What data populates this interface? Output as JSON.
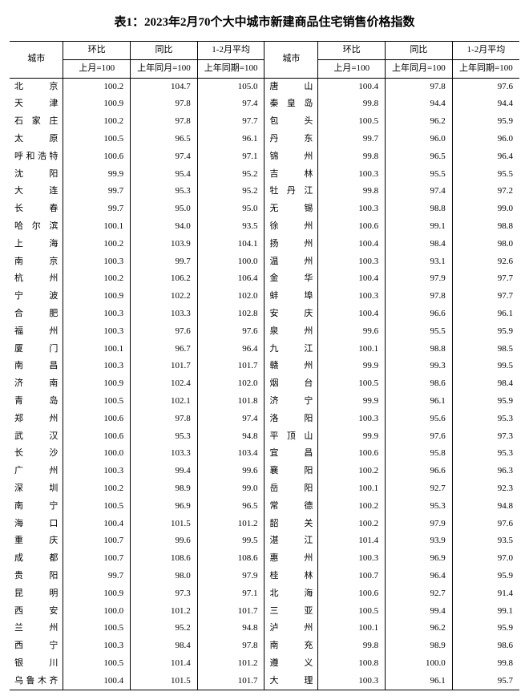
{
  "title": "表1：2023年2月70个大中城市新建商品住宅销售价格指数",
  "header": {
    "city_label": "城市",
    "ratio_month": "环比",
    "ratio_year": "同比",
    "ratio_avg": "1-2月平均",
    "sub_month": "上月=100",
    "sub_year": "上年同月=100",
    "sub_avg": "上年同期=100"
  },
  "colors": {
    "bg": "#ffffff",
    "text": "#000000",
    "border": "#000000"
  },
  "font": {
    "family": "SimSun",
    "size_body": 11,
    "size_title": 15
  },
  "left": [
    {
      "city": "北京",
      "m": "100.2",
      "y": "104.7",
      "a": "105.0"
    },
    {
      "city": "天津",
      "m": "100.9",
      "y": "97.8",
      "a": "97.4"
    },
    {
      "city": "石家庄",
      "m": "100.2",
      "y": "97.8",
      "a": "97.7"
    },
    {
      "city": "太原",
      "m": "100.5",
      "y": "96.5",
      "a": "96.1"
    },
    {
      "city": "呼和浩特",
      "m": "100.6",
      "y": "97.4",
      "a": "97.1"
    },
    {
      "city": "沈阳",
      "m": "99.9",
      "y": "95.4",
      "a": "95.2"
    },
    {
      "city": "大连",
      "m": "99.7",
      "y": "95.3",
      "a": "95.2"
    },
    {
      "city": "长春",
      "m": "99.7",
      "y": "95.0",
      "a": "95.0"
    },
    {
      "city": "哈尔滨",
      "m": "100.1",
      "y": "94.0",
      "a": "93.5"
    },
    {
      "city": "上海",
      "m": "100.2",
      "y": "103.9",
      "a": "104.1"
    },
    {
      "city": "南京",
      "m": "100.3",
      "y": "99.7",
      "a": "100.0"
    },
    {
      "city": "杭州",
      "m": "100.2",
      "y": "106.2",
      "a": "106.4"
    },
    {
      "city": "宁波",
      "m": "100.9",
      "y": "102.2",
      "a": "102.0"
    },
    {
      "city": "合肥",
      "m": "100.3",
      "y": "103.3",
      "a": "102.8"
    },
    {
      "city": "福州",
      "m": "100.3",
      "y": "97.6",
      "a": "97.6"
    },
    {
      "city": "厦门",
      "m": "100.1",
      "y": "96.7",
      "a": "96.4"
    },
    {
      "city": "南昌",
      "m": "100.3",
      "y": "101.7",
      "a": "101.7"
    },
    {
      "city": "济南",
      "m": "100.9",
      "y": "102.4",
      "a": "102.0"
    },
    {
      "city": "青岛",
      "m": "100.5",
      "y": "102.1",
      "a": "101.8"
    },
    {
      "city": "郑州",
      "m": "100.6",
      "y": "97.8",
      "a": "97.4"
    },
    {
      "city": "武汉",
      "m": "100.6",
      "y": "95.3",
      "a": "94.8"
    },
    {
      "city": "长沙",
      "m": "100.0",
      "y": "103.3",
      "a": "103.4"
    },
    {
      "city": "广州",
      "m": "100.3",
      "y": "99.4",
      "a": "99.6"
    },
    {
      "city": "深圳",
      "m": "100.2",
      "y": "98.9",
      "a": "99.0"
    },
    {
      "city": "南宁",
      "m": "100.5",
      "y": "96.9",
      "a": "96.5"
    },
    {
      "city": "海口",
      "m": "100.4",
      "y": "101.5",
      "a": "101.2"
    },
    {
      "city": "重庆",
      "m": "100.7",
      "y": "99.6",
      "a": "99.5"
    },
    {
      "city": "成都",
      "m": "100.7",
      "y": "108.6",
      "a": "108.6"
    },
    {
      "city": "贵阳",
      "m": "99.7",
      "y": "98.0",
      "a": "97.9"
    },
    {
      "city": "昆明",
      "m": "100.9",
      "y": "97.3",
      "a": "97.1"
    },
    {
      "city": "西安",
      "m": "100.0",
      "y": "101.2",
      "a": "101.7"
    },
    {
      "city": "兰州",
      "m": "100.5",
      "y": "95.2",
      "a": "94.8"
    },
    {
      "city": "西宁",
      "m": "100.3",
      "y": "98.4",
      "a": "97.8"
    },
    {
      "city": "银川",
      "m": "100.5",
      "y": "101.4",
      "a": "101.2"
    },
    {
      "city": "乌鲁木齐",
      "m": "100.4",
      "y": "101.5",
      "a": "101.7"
    }
  ],
  "right": [
    {
      "city": "唐山",
      "m": "100.4",
      "y": "97.8",
      "a": "97.6"
    },
    {
      "city": "秦皇岛",
      "m": "99.8",
      "y": "94.4",
      "a": "94.4"
    },
    {
      "city": "包头",
      "m": "100.5",
      "y": "96.2",
      "a": "95.9"
    },
    {
      "city": "丹东",
      "m": "99.7",
      "y": "96.0",
      "a": "96.0"
    },
    {
      "city": "锦州",
      "m": "99.8",
      "y": "96.5",
      "a": "96.4"
    },
    {
      "city": "吉林",
      "m": "100.3",
      "y": "95.5",
      "a": "95.5"
    },
    {
      "city": "牡丹江",
      "m": "99.8",
      "y": "97.4",
      "a": "97.2"
    },
    {
      "city": "无锡",
      "m": "100.3",
      "y": "98.8",
      "a": "99.0"
    },
    {
      "city": "徐州",
      "m": "100.6",
      "y": "99.1",
      "a": "98.8"
    },
    {
      "city": "扬州",
      "m": "100.4",
      "y": "98.4",
      "a": "98.0"
    },
    {
      "city": "温州",
      "m": "100.3",
      "y": "93.1",
      "a": "92.6"
    },
    {
      "city": "金华",
      "m": "100.4",
      "y": "97.9",
      "a": "97.7"
    },
    {
      "city": "蚌埠",
      "m": "100.3",
      "y": "97.8",
      "a": "97.7"
    },
    {
      "city": "安庆",
      "m": "100.4",
      "y": "96.6",
      "a": "96.1"
    },
    {
      "city": "泉州",
      "m": "99.6",
      "y": "95.5",
      "a": "95.9"
    },
    {
      "city": "九江",
      "m": "100.1",
      "y": "98.8",
      "a": "98.5"
    },
    {
      "city": "赣州",
      "m": "99.9",
      "y": "99.3",
      "a": "99.5"
    },
    {
      "city": "烟台",
      "m": "100.5",
      "y": "98.6",
      "a": "98.4"
    },
    {
      "city": "济宁",
      "m": "99.9",
      "y": "96.1",
      "a": "95.9"
    },
    {
      "city": "洛阳",
      "m": "100.3",
      "y": "95.6",
      "a": "95.3"
    },
    {
      "city": "平顶山",
      "m": "99.9",
      "y": "97.6",
      "a": "97.3"
    },
    {
      "city": "宜昌",
      "m": "100.6",
      "y": "95.8",
      "a": "95.3"
    },
    {
      "city": "襄阳",
      "m": "100.2",
      "y": "96.6",
      "a": "96.3"
    },
    {
      "city": "岳阳",
      "m": "100.1",
      "y": "92.7",
      "a": "92.3"
    },
    {
      "city": "常德",
      "m": "100.2",
      "y": "95.3",
      "a": "94.8"
    },
    {
      "city": "韶关",
      "m": "100.2",
      "y": "97.9",
      "a": "97.6"
    },
    {
      "city": "湛江",
      "m": "101.4",
      "y": "93.9",
      "a": "93.5"
    },
    {
      "city": "惠州",
      "m": "100.3",
      "y": "96.9",
      "a": "97.0"
    },
    {
      "city": "桂林",
      "m": "100.7",
      "y": "96.4",
      "a": "95.9"
    },
    {
      "city": "北海",
      "m": "100.6",
      "y": "92.7",
      "a": "91.4"
    },
    {
      "city": "三亚",
      "m": "100.5",
      "y": "99.4",
      "a": "99.1"
    },
    {
      "city": "泸州",
      "m": "100.1",
      "y": "96.2",
      "a": "95.9"
    },
    {
      "city": "南充",
      "m": "99.8",
      "y": "98.9",
      "a": "98.6"
    },
    {
      "city": "遵义",
      "m": "100.8",
      "y": "100.0",
      "a": "99.8"
    },
    {
      "city": "大理",
      "m": "100.3",
      "y": "96.1",
      "a": "95.7"
    }
  ]
}
